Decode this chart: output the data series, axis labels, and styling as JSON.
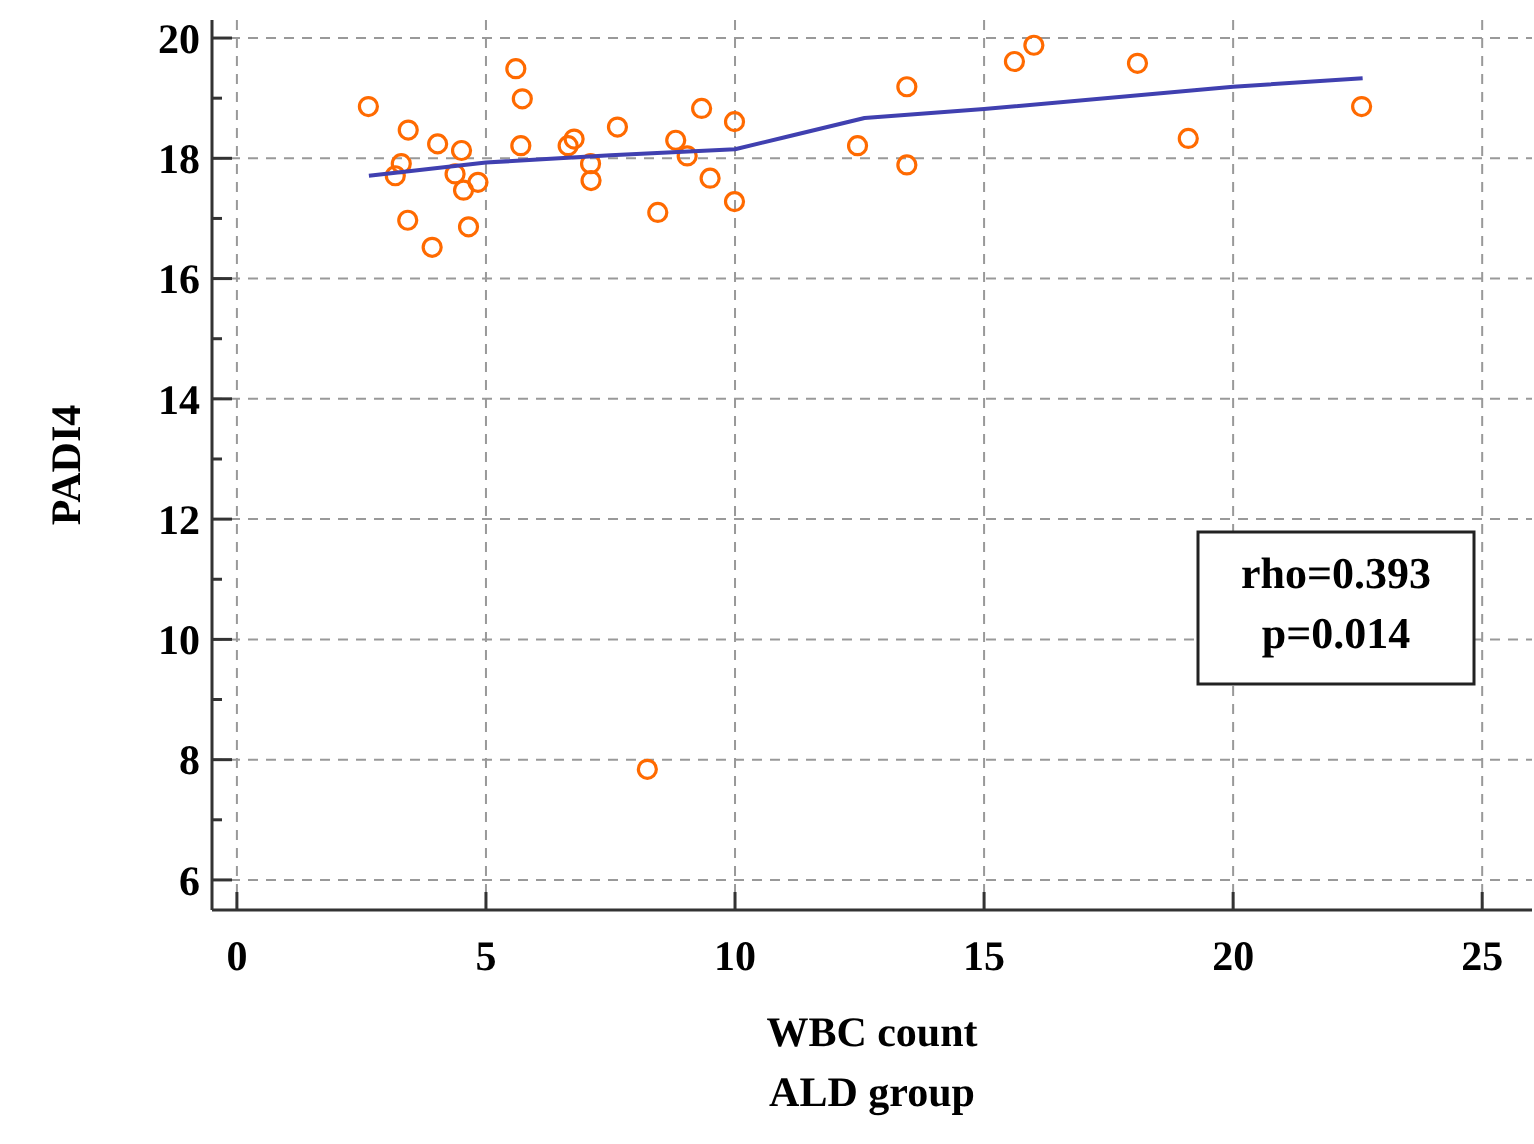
{
  "chart_data": {
    "type": "scatter",
    "xlabel": "WBC count\nALD group",
    "ylabel": "PADI4",
    "xlim": [
      -0.5,
      26
    ],
    "ylim": [
      5.5,
      20.3
    ],
    "xticks": [
      0,
      5,
      10,
      15,
      20,
      25
    ],
    "yticks": [
      6,
      {
        "value": 7,
        "label": null
      },
      8,
      {
        "value": 9,
        "label": null
      },
      10,
      {
        "value": 11,
        "label": null
      },
      12,
      {
        "value": 13,
        "label": null
      },
      14,
      {
        "value": 15,
        "label": null
      },
      16,
      {
        "value": 17,
        "label": null
      },
      18,
      {
        "value": 19,
        "label": null
      },
      20
    ],
    "grid": true,
    "series": [
      {
        "color": "#ff6a00",
        "marker": "circle",
        "x": [
          2.64,
          3.44,
          3.3,
          3.18,
          4.03,
          4.51,
          4.38,
          4.55,
          4.84,
          3.43,
          4.65,
          3.92,
          5.6,
          5.73,
          5.7,
          6.65,
          6.77,
          7.1,
          7.11,
          7.64,
          8.45,
          8.81,
          9.04,
          9.33,
          9.5,
          9.99,
          9.99,
          8.24,
          12.46,
          13.45,
          13.45,
          15.61,
          16.0,
          18.08,
          19.1,
          22.58
        ],
        "values": [
          18.86,
          18.47,
          17.91,
          17.71,
          18.24,
          18.13,
          17.74,
          17.47,
          17.6,
          16.97,
          16.86,
          16.52,
          19.49,
          18.99,
          18.21,
          18.21,
          18.32,
          17.91,
          17.63,
          18.52,
          17.1,
          18.3,
          18.04,
          18.83,
          17.67,
          18.61,
          17.28,
          7.84,
          18.21,
          19.19,
          17.89,
          19.61,
          19.88,
          19.58,
          18.33,
          18.86
        ]
      },
      {
        "type": "line",
        "color": "#4040b0",
        "marker": "none",
        "line_style": "solid",
        "x": [
          2.65,
          5,
          7.5,
          10,
          11,
          12.6,
          15,
          20,
          22.6
        ],
        "values": [
          17.71,
          17.93,
          18.05,
          18.15,
          18.35,
          18.67,
          18.82,
          19.19,
          19.33
        ]
      }
    ],
    "annotations": [
      "rho=0.393",
      "p=0.014"
    ]
  }
}
